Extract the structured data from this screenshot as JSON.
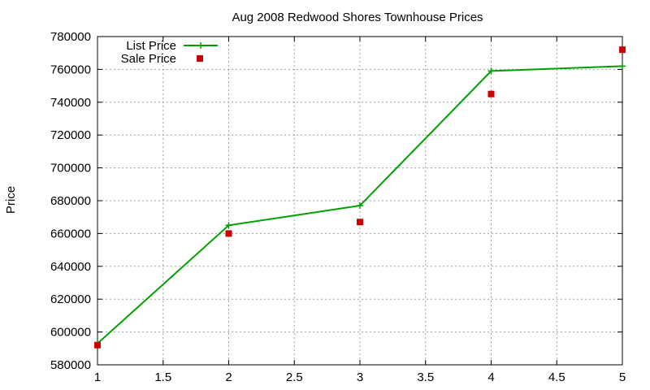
{
  "chart_data": {
    "type": "line",
    "title": "Aug 2008 Redwood Shores Townhouse Prices",
    "xlabel": "",
    "ylabel": "Price",
    "xlim": [
      1,
      5
    ],
    "ylim": [
      580000,
      780000
    ],
    "x_ticks": [
      "1",
      "1.5",
      "2",
      "2.5",
      "3",
      "3.5",
      "4",
      "4.5",
      "5"
    ],
    "y_ticks": [
      "580000",
      "600000",
      "620000",
      "640000",
      "660000",
      "680000",
      "700000",
      "720000",
      "740000",
      "760000",
      "780000"
    ],
    "grid": true,
    "legend_position": "top-left",
    "series": [
      {
        "name": "List Price",
        "style": "line-with-plus",
        "color": "#00a000",
        "x": [
          1,
          2,
          3,
          4,
          5
        ],
        "values": [
          593000,
          665000,
          677000,
          759000,
          762000
        ]
      },
      {
        "name": "Sale Price",
        "style": "square-points",
        "color": "#cc0000",
        "x": [
          1,
          2,
          3,
          4,
          5
        ],
        "values": [
          592000,
          660000,
          667000,
          745000,
          772000
        ]
      }
    ]
  }
}
